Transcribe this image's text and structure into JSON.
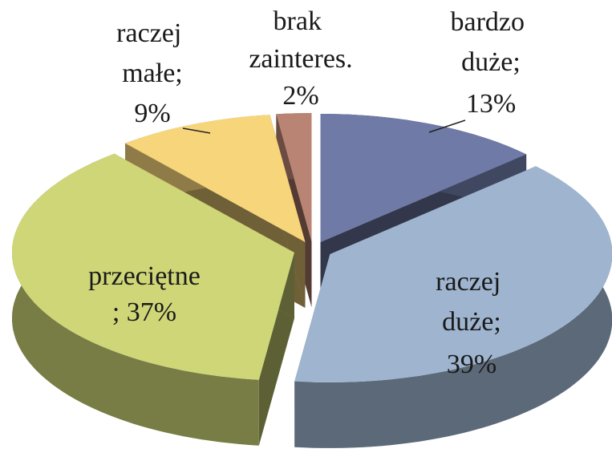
{
  "chart_data": {
    "type": "pie3d",
    "categories": [
      "bardzo duże;",
      "raczej duże;",
      "przeciętne",
      "raczej małe;",
      "brak zainteres."
    ],
    "values": [
      13,
      39,
      37,
      9,
      2
    ],
    "value_labels": [
      "13%",
      "39%",
      "; 37%",
      "9%",
      "2%"
    ],
    "colors": [
      "#6f7aa6",
      "#9fb5cf",
      "#cfd677",
      "#f6d57b",
      "#b98474"
    ]
  }
}
